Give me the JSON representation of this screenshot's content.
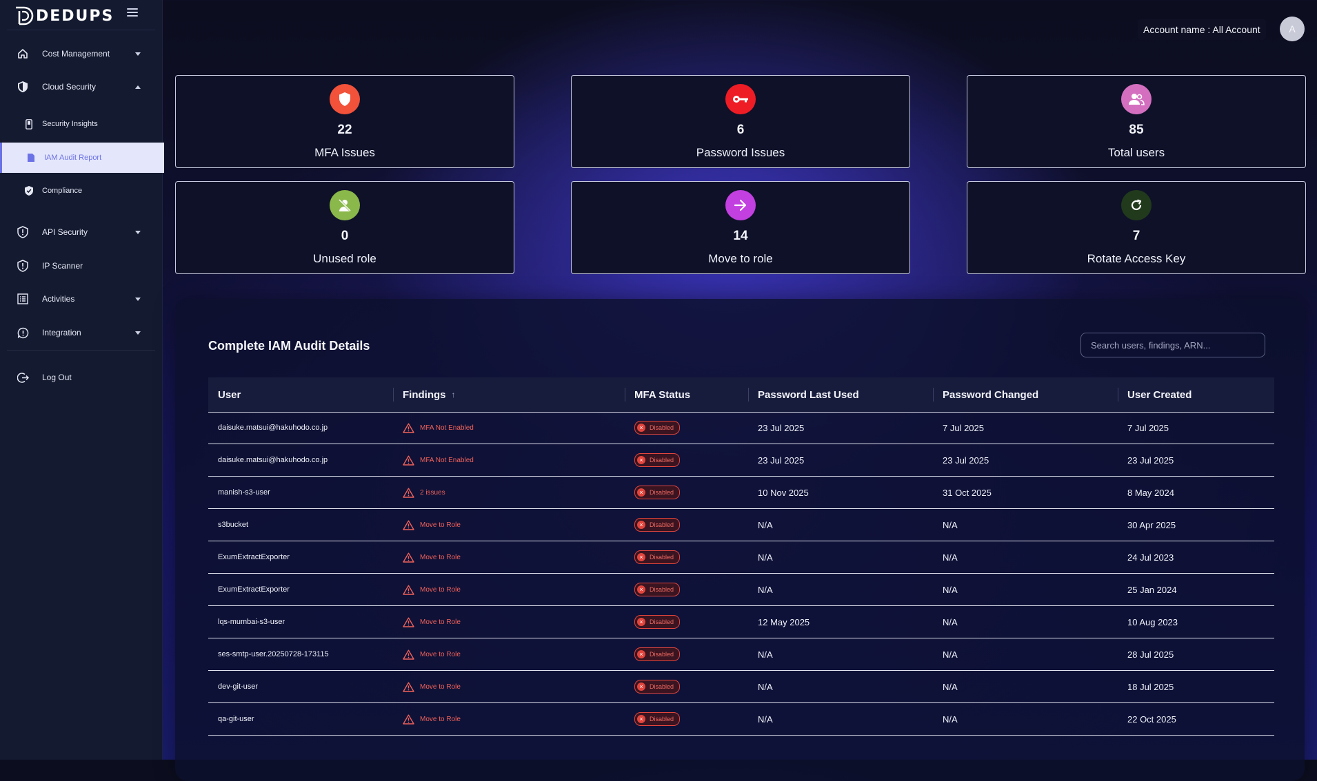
{
  "app": {
    "name": "DEDUPS"
  },
  "sidebar": {
    "items": [
      {
        "label": "Cost Management",
        "icon": "home-icon",
        "caret": "down"
      },
      {
        "label": "Cloud Security",
        "icon": "shield-icon",
        "caret": "up",
        "children": [
          {
            "label": "Security Insights",
            "icon": "phone-icon"
          },
          {
            "label": "IAM Audit Report",
            "icon": "document-icon",
            "active": true
          },
          {
            "label": "Compliance",
            "icon": "shield-check-icon"
          }
        ]
      },
      {
        "label": "API Security",
        "icon": "shield-exclamation-icon",
        "caret": "down"
      },
      {
        "label": "IP Scanner",
        "icon": "shield-exclamation-icon"
      },
      {
        "label": "Activities",
        "icon": "list-icon",
        "caret": "down"
      },
      {
        "label": "Integration",
        "icon": "chat-alert-icon",
        "caret": "down"
      }
    ],
    "logout": {
      "label": "Log Out",
      "icon": "logout-icon"
    }
  },
  "header": {
    "account_label": "Account name : All Account",
    "avatar_initial": "A"
  },
  "stats": [
    {
      "value": "22",
      "label": "MFA Issues",
      "icon": "shield-icon",
      "color": "#f2513a"
    },
    {
      "value": "6",
      "label": "Password Issues",
      "icon": "key-icon",
      "color": "#ee1c25"
    },
    {
      "value": "85",
      "label": "Total users",
      "icon": "users-icon",
      "color": "#d46fc0"
    },
    {
      "value": "0",
      "label": "Unused role",
      "icon": "user-off-icon",
      "color": "#8ab84a"
    },
    {
      "value": "14",
      "label": "Move to role",
      "icon": "arrow-right-icon",
      "color": "#c23fe0"
    },
    {
      "value": "7",
      "label": "Rotate Access Key",
      "icon": "refresh-icon",
      "color": "#213a1c"
    }
  ],
  "audit": {
    "title": "Complete IAM Audit Details",
    "search_placeholder": "Search users, findings, ARN...",
    "columns": [
      "User",
      "Findings",
      "MFA Status",
      "Password Last Used",
      "Password Changed",
      "User Created"
    ],
    "sort_indicator": "↑",
    "rows": [
      {
        "user": "daisuke.matsui@hakuhodo.co.jp",
        "finding": "MFA Not Enabled",
        "mfa": "Disabled",
        "pw_last_used": "23 Jul 2025",
        "pw_changed": "7 Jul 2025",
        "created": "7 Jul 2025"
      },
      {
        "user": "daisuke.matsui@hakuhodo.co.jp",
        "finding": "MFA Not Enabled",
        "mfa": "Disabled",
        "pw_last_used": "23 Jul 2025",
        "pw_changed": "23 Jul 2025",
        "created": "23 Jul 2025"
      },
      {
        "user": "manish-s3-user",
        "finding": "2 issues",
        "mfa": "Disabled",
        "pw_last_used": "10 Nov 2025",
        "pw_changed": "31 Oct 2025",
        "created": "8 May 2024"
      },
      {
        "user": "s3bucket",
        "finding": "Move to Role",
        "mfa": "Disabled",
        "pw_last_used": "N/A",
        "pw_changed": "N/A",
        "created": "30 Apr 2025"
      },
      {
        "user": "ExumExtractExporter",
        "finding": "Move to Role",
        "mfa": "Disabled",
        "pw_last_used": "N/A",
        "pw_changed": "N/A",
        "created": "24 Jul 2023"
      },
      {
        "user": "ExumExtractExporter",
        "finding": "Move to Role",
        "mfa": "Disabled",
        "pw_last_used": "N/A",
        "pw_changed": "N/A",
        "created": "25 Jan 2024"
      },
      {
        "user": "lqs-mumbai-s3-user",
        "finding": "Move to Role",
        "mfa": "Disabled",
        "pw_last_used": "12 May 2025",
        "pw_changed": "N/A",
        "created": "10 Aug 2023"
      },
      {
        "user": "ses-smtp-user.20250728-173115",
        "finding": "Move to Role",
        "mfa": "Disabled",
        "pw_last_used": "N/A",
        "pw_changed": "N/A",
        "created": "28 Jul 2025"
      },
      {
        "user": "dev-git-user",
        "finding": "Move to Role",
        "mfa": "Disabled",
        "pw_last_used": "N/A",
        "pw_changed": "N/A",
        "created": "18 Jul 2025"
      },
      {
        "user": "qa-git-user",
        "finding": "Move to Role",
        "mfa": "Disabled",
        "pw_last_used": "N/A",
        "pw_changed": "N/A",
        "created": "22 Oct 2025"
      }
    ]
  }
}
